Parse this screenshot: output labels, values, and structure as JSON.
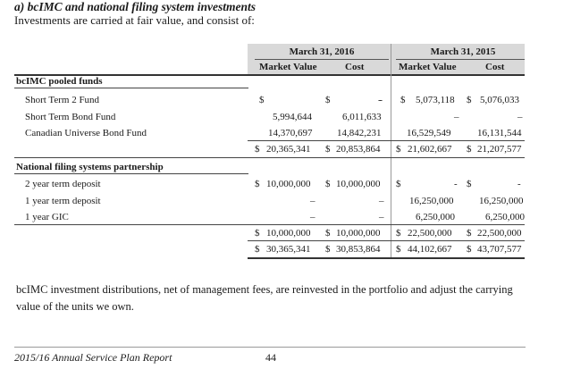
{
  "heading": "a) bcIMC and national filing system investments",
  "intro": "Investments are carried at fair value, and consist of:",
  "columns": {
    "period_2016": "March 31, 2016",
    "period_2015": "March 31, 2015",
    "market_value": "Market Value",
    "cost": "Cost"
  },
  "currency_symbol": "$",
  "dash": "–",
  "sections": [
    {
      "title": "bcIMC pooled funds",
      "rows": [
        {
          "label": "Short Term 2 Fund",
          "mv2016": "-",
          "cost2016": "-",
          "mv2015": "5,073,118",
          "cost2015": "5,076,033"
        },
        {
          "label": "Short Term Bond Fund",
          "mv2016": "5,994,644",
          "cost2016": "6,011,633",
          "mv2015": "–",
          "cost2015": "–"
        },
        {
          "label": "Canadian Universe Bond Fund",
          "mv2016": "14,370,697",
          "cost2016": "14,842,231",
          "mv2015": "16,529,549",
          "cost2015": "16,131,544"
        }
      ],
      "total": {
        "mv2016": "20,365,341",
        "cost2016": "20,853,864",
        "mv2015": "21,602,667",
        "cost2015": "21,207,577"
      }
    },
    {
      "title": "National filing systems partnership",
      "rows": [
        {
          "label": "2 year term deposit",
          "mv2016": "10,000,000",
          "cost2016": "10,000,000",
          "mv2015": "-",
          "cost2015": "-"
        },
        {
          "label": "1 year term deposit",
          "mv2016": "–",
          "cost2016": "–",
          "mv2015": "16,250,000",
          "cost2015": "16,250,000"
        },
        {
          "label": "1 year GIC",
          "mv2016": "–",
          "cost2016": "–",
          "mv2015": "6,250,000",
          "cost2015": "6,250,000"
        }
      ],
      "total": {
        "mv2016": "10,000,000",
        "cost2016": "10,000,000",
        "mv2015": "22,500,000",
        "cost2015": "22,500,000"
      }
    }
  ],
  "grand_total": {
    "mv2016": "30,365,341",
    "cost2016": "30,853,864",
    "mv2015": "44,102,667",
    "cost2015": "43,707,577"
  },
  "paragraph": "bcIMC investment distributions, net of management fees, are reinvested in the portfolio and adjust the carrying value of the units we own.",
  "footer": {
    "report": "2015/16 Annual Service Plan Report",
    "page": "44"
  }
}
